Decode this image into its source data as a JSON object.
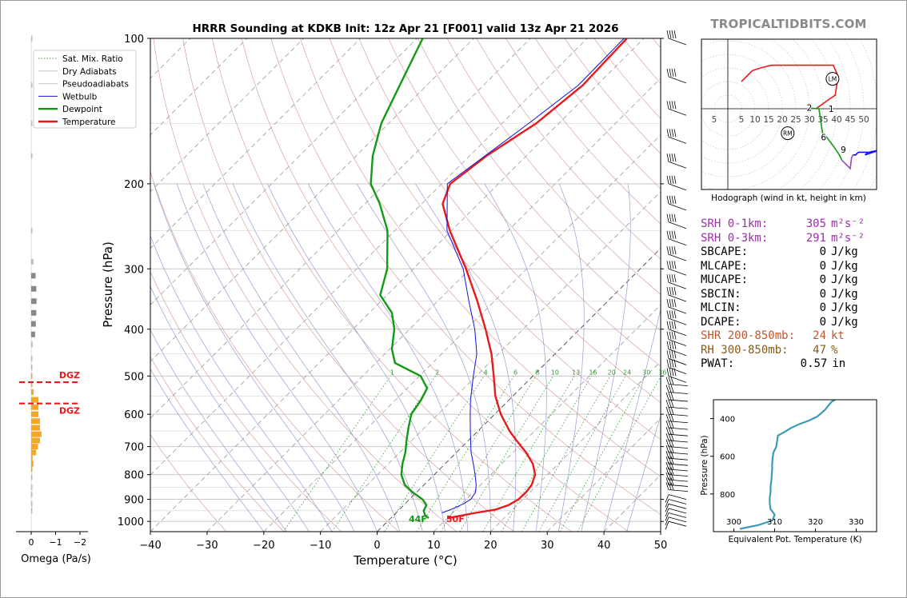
{
  "title": "HRRR Sounding at KDKB Init: 12z Apr 21 [F001] valid 13z Apr 21 2026",
  "brand": "TROPICALTIDBITS.COM",
  "skewt": {
    "xlabel": "Temperature (°C)",
    "ylabel": "Pressure (hPa)",
    "x_ticks": [
      -40,
      -30,
      -20,
      -10,
      0,
      10,
      20,
      30,
      40,
      50
    ],
    "p_ticks": [
      100,
      200,
      300,
      400,
      500,
      600,
      700,
      800,
      900,
      1000
    ],
    "legend": [
      "Sat. Mix. Ratio",
      "Dry Adiabats",
      "Pseudoadiabats",
      "Wetbulb",
      "Dewpoint",
      "Temperature"
    ],
    "mix_ratio_labels": [
      "1",
      "2",
      "4",
      "6",
      "8",
      "10",
      "13",
      "16",
      "20",
      "24",
      "30",
      "36"
    ],
    "surface_dewpoint_label": "44F",
    "surface_temp_label": "50F"
  },
  "omega": {
    "xlabel": "Omega (Pa/s)",
    "x_ticks": [
      "0",
      "−1",
      "−2"
    ],
    "dgz_label": "DGZ"
  },
  "hodograph": {
    "caption": "Hodograph (wind in kt, height in km)",
    "ring_labels": [
      "5",
      "5",
      "10",
      "15",
      "20",
      "25",
      "30",
      "35",
      "40",
      "45",
      "50"
    ],
    "height_labels": [
      "1",
      "2",
      "6",
      "9"
    ],
    "storm_motion_labels": [
      "LM",
      "RM"
    ]
  },
  "theta_e": {
    "xlabel": "Equivalent Pot. Temperature (K)",
    "ylabel": "Pressure (hPa)",
    "x_ticks": [
      "300",
      "310",
      "320",
      "330"
    ],
    "y_ticks": [
      "400",
      "600",
      "800"
    ]
  },
  "stats": [
    {
      "label": "SRH 0-1km:",
      "value": "305",
      "unit": "m²s⁻²",
      "color": "#9b30a8"
    },
    {
      "label": "SRH 0-3km:",
      "value": "291",
      "unit": "m²s⁻²",
      "color": "#9b30a8"
    },
    {
      "label": "SBCAPE:",
      "value": "0",
      "unit": "J/kg",
      "color": "#000000"
    },
    {
      "label": "MLCAPE:",
      "value": "0",
      "unit": "J/kg",
      "color": "#000000"
    },
    {
      "label": "MUCAPE:",
      "value": "0",
      "unit": "J/kg",
      "color": "#000000"
    },
    {
      "label": "SBCIN:",
      "value": "0",
      "unit": "J/kg",
      "color": "#000000"
    },
    {
      "label": "MLCIN:",
      "value": "0",
      "unit": "J/kg",
      "color": "#000000"
    },
    {
      "label": "DCAPE:",
      "value": "0",
      "unit": "J/kg",
      "color": "#000000"
    },
    {
      "label": "SHR 200-850mb:",
      "value": "24",
      "unit": "kt",
      "color": "#c0582a"
    },
    {
      "label": "RH 300-850mb:",
      "value": "47",
      "unit": "%",
      "color": "#8a5a12"
    },
    {
      "label": "PWAT:",
      "value": "0.57",
      "unit": "in",
      "color": "#000000"
    }
  ],
  "colors": {
    "temperature": "#e8191a",
    "dewpoint": "#129b12",
    "wetbulb": "#1010e0",
    "theta_e": "#3a9bb5",
    "dgz": "#e8191a",
    "omega_bar": "#f5a623"
  },
  "chart_data": [
    {
      "type": "line",
      "title": "HRRR Sounding at KDKB Init: 12z Apr 21 [F001] valid 13z Apr 21 2026",
      "xlabel": "Temperature (°C)",
      "ylabel": "Pressure (hPa)",
      "xlim": [
        -40,
        50
      ],
      "ylim": [
        1050,
        100
      ],
      "y_scale": "log",
      "skew": "skew-T",
      "legend_position": "top-left",
      "series": [
        {
          "name": "Temperature",
          "p": [
            985,
            960,
            945,
            925,
            900,
            870,
            840,
            800,
            760,
            720,
            680,
            650,
            600,
            550,
            500,
            450,
            400,
            350,
            300,
            250,
            220,
            200,
            175,
            150,
            125,
            100
          ],
          "t": [
            10.1,
            14.0,
            17.0,
            18.5,
            19.2,
            19.3,
            19.0,
            17.8,
            15.5,
            12.3,
            8.5,
            5.6,
            1.1,
            -3.1,
            -6.9,
            -11.2,
            -16.6,
            -23.0,
            -30.7,
            -40.3,
            -46.3,
            -48.5,
            -47.0,
            -44.0,
            -42.5,
            -43.0
          ]
        },
        {
          "name": "Dewpoint",
          "p": [
            985,
            970,
            950,
            925,
            900,
            870,
            840,
            800,
            760,
            720,
            680,
            640,
            600,
            560,
            530,
            500,
            470,
            440,
            400,
            370,
            340,
            300,
            250,
            220,
            200,
            175,
            150,
            125,
            100
          ],
          "t": [
            6.7,
            5.5,
            4.5,
            4.0,
            2.3,
            -0.7,
            -3.4,
            -5.8,
            -7.5,
            -9.0,
            -10.9,
            -12.8,
            -14.7,
            -15.5,
            -16.5,
            -19.8,
            -26.6,
            -29.6,
            -32.7,
            -36.0,
            -41.2,
            -44.6,
            -51.3,
            -57.4,
            -62.5,
            -67.1,
            -71.3,
            -74.8,
            -79.0
          ]
        },
        {
          "name": "Wetbulb",
          "p": [
            960,
            945,
            920,
            900,
            870,
            840,
            800,
            760,
            720,
            680,
            640,
            600,
            560,
            530,
            500,
            450,
            400,
            350,
            300,
            250,
            200,
            150,
            125,
            100
          ],
          "t": [
            8.1,
            9.1,
            10.3,
            10.8,
            10.4,
            9.2,
            7.2,
            5.0,
            2.6,
            0.4,
            -1.9,
            -4.3,
            -6.8,
            -8.6,
            -10.5,
            -13.8,
            -18.5,
            -24.5,
            -31.2,
            -40.8,
            -49.0,
            -45.3,
            -43.3,
            -43.5
          ]
        }
      ]
    },
    {
      "type": "bar",
      "xlabel": "Omega (Pa/s)",
      "note_levels": "DGZ",
      "xlim": [
        0.3,
        -2.0
      ],
      "pressure": [
        950,
        920,
        880,
        850,
        810,
        780,
        760,
        740,
        720,
        700,
        680,
        660,
        640,
        620,
        600,
        580,
        560,
        540,
        520,
        500,
        480,
        460,
        430,
        410,
        390,
        370,
        350,
        330,
        310,
        290,
        250,
        175,
        150,
        125,
        100
      ],
      "values": [
        0.0,
        -0.03,
        -0.05,
        -0.03,
        -0.04,
        -0.02,
        -0.09,
        -0.06,
        -0.2,
        -0.28,
        -0.36,
        -0.42,
        -0.36,
        -0.36,
        -0.3,
        -0.3,
        -0.3,
        -0.1,
        -0.04,
        -0.02,
        -0.04,
        -0.03,
        -0.06,
        -0.16,
        -0.19,
        -0.21,
        -0.22,
        -0.21,
        -0.18,
        -0.09,
        -0.01,
        -0.01,
        -0.01,
        -0.01,
        -0.02
      ],
      "dgz_pressures": [
        515,
        570
      ]
    },
    {
      "type": "line",
      "title": "Hodograph (wind in kt, height in km)",
      "axis_range_kt": [
        -10,
        55
      ],
      "labels": [
        "1",
        "2",
        "6",
        "9",
        "LM",
        "RM"
      ],
      "series": [
        {
          "name": "0-1 km",
          "u": [
            38.0,
            32.4
          ],
          "v": [
            4.0,
            0.0
          ]
        },
        {
          "name": "1-3 km",
          "u": [
            30.0,
            33.5,
            35.0
          ],
          "v": [
            0.2,
            0.0,
            -10.0
          ]
        },
        {
          "name": "3-6 km",
          "u": [
            36.0,
            39.0,
            41.0,
            42.0
          ],
          "v": [
            -10.0,
            -14.0,
            -17.0,
            -19.0
          ]
        },
        {
          "name": "6-9 km",
          "u": [
            42.0,
            45.0,
            45.5,
            46.0
          ],
          "v": [
            -19.0,
            -22.0,
            -18.0,
            -17.0
          ]
        },
        {
          "name": "9+ km",
          "u": [
            46.0,
            47.0,
            48.0,
            52.0,
            56.5,
            50.5,
            51.5
          ],
          "v": [
            -17.0,
            -17.0,
            -16.0,
            -16.0,
            -15.0,
            -17.0,
            -16.0
          ]
        },
        {
          "name": "upper",
          "u": [
            5.0,
            9.0,
            12.0,
            16.0,
            23.0,
            27.0,
            33.5,
            38.8,
            40.5,
            39.5,
            38.0
          ],
          "v": [
            10.0,
            14.0,
            15.0,
            16.0,
            16.0,
            16.0,
            16.0,
            16.0,
            12.0,
            5.0,
            4.0
          ]
        }
      ],
      "storm_motion": {
        "LM": [
          38.5,
          11.0
        ],
        "RM": [
          22.0,
          -9.0
        ]
      }
    },
    {
      "type": "line",
      "xlabel": "Equivalent Pot. Temperature (K)",
      "ylabel": "Pressure (hPa)",
      "xlim": [
        295,
        335
      ],
      "ylim": [
        1000,
        300
      ],
      "series": [
        {
          "name": "Equivalent Pot. Temperature",
          "p": [
            985,
            965,
            940,
            910,
            880,
            850,
            820,
            790,
            760,
            730,
            700,
            670,
            640,
            610,
            580,
            550,
            520,
            490,
            470,
            450,
            430,
            410,
            390,
            370,
            350,
            330,
            310,
            300
          ],
          "theta_e": [
            301.5,
            306.0,
            309.5,
            310.0,
            309.0,
            308.8,
            308.8,
            309.0,
            309.0,
            309.2,
            309.3,
            309.4,
            309.4,
            309.5,
            309.7,
            310.4,
            310.6,
            310.8,
            312.5,
            314.0,
            316.0,
            318.5,
            320.4,
            321.5,
            322.5,
            323.2,
            324.0,
            324.8
          ]
        }
      ]
    }
  ]
}
